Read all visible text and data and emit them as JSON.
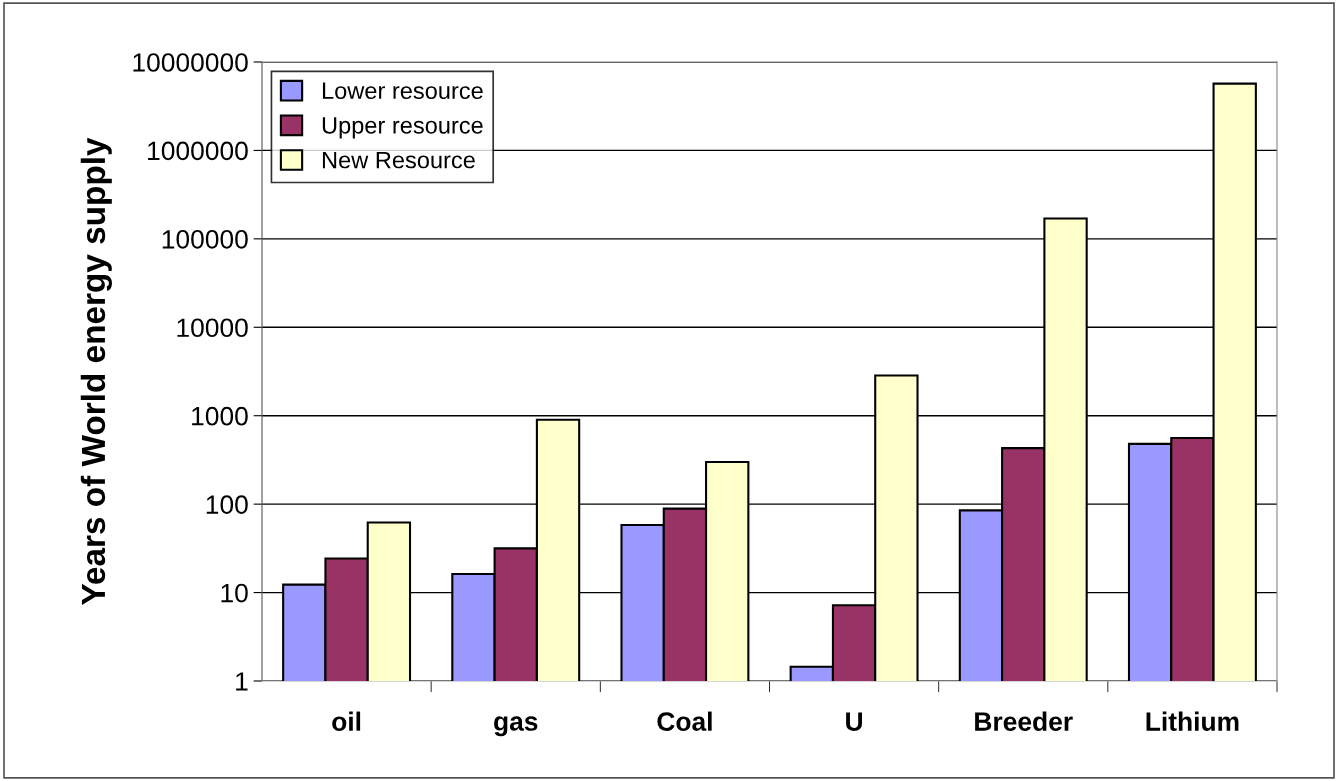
{
  "chart_data": {
    "type": "bar",
    "ylabel": "Years of World energy supply",
    "categories": [
      "oil",
      "gas",
      "Coal",
      "U",
      "Breeder",
      "Lithium"
    ],
    "series": [
      {
        "name": "Lower resource",
        "color": "#9999ff",
        "values": [
          12.3,
          16.2,
          58,
          1.45,
          85,
          480
        ]
      },
      {
        "name": "Upper resource",
        "color": "#993366",
        "values": [
          24.3,
          31.6,
          89,
          7.2,
          430,
          560
        ]
      },
      {
        "name": "New Resource",
        "color": "#ffffcc",
        "values": [
          62,
          900,
          300,
          2850,
          170000,
          5700000
        ]
      }
    ],
    "log": true,
    "ylim": [
      1,
      10000000
    ],
    "yticks": [
      1,
      10,
      100,
      1000,
      10000,
      100000,
      1000000,
      10000000
    ],
    "grid": "y",
    "legend": "top left"
  }
}
